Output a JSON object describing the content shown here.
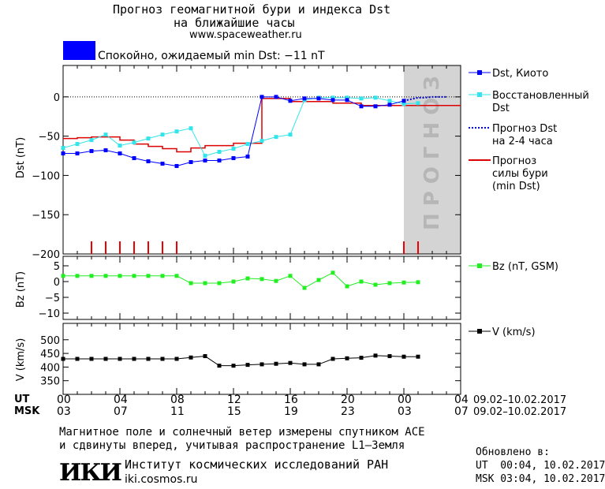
{
  "header": {
    "title_line1": "Прогноз геомагнитной бури и индекса Dst",
    "title_line2": "на ближайшие часы",
    "site": "www.spaceweather.ru",
    "status_text": "Спокойно, ожидаемый min Dst: −11 nT",
    "status_color": "#0000ff"
  },
  "forecast_label": "ПРОГНОЗ",
  "colors": {
    "dst_kyoto": "#0000ff",
    "dst_restored": "#33e5ea",
    "dst_forecast": "#0000cc",
    "storm_forecast": "#dd0000",
    "bz": "#22ee22",
    "v": "#000000",
    "forecast_shade": "#d4d4d4",
    "ticks_red": "#ee0000"
  },
  "time_axis": {
    "ut_label": "UT",
    "msk_label": "MSK",
    "ut_ticks": [
      "00",
      "04",
      "08",
      "12",
      "16",
      "20",
      "00",
      "04"
    ],
    "msk_ticks": [
      "03",
      "07",
      "11",
      "15",
      "19",
      "23",
      "03",
      "07"
    ],
    "date_range_ut": "09.02–10.02.2017",
    "date_range_msk": "09.02–10.02.2017"
  },
  "chart_data": [
    {
      "type": "line",
      "ylabel": "Dst (nT)",
      "ylim": [
        -200,
        40
      ],
      "yticks": [
        0,
        -50,
        -100,
        -150,
        -200
      ],
      "xlim": [
        0,
        28
      ],
      "forecast_region_start": 24,
      "legend": [
        {
          "name": "Dst, Киото"
        },
        {
          "name": "Восстановленный Dst"
        },
        {
          "name": "Прогноз Dst на 2-4 часа"
        },
        {
          "name": "Прогноз силы бури (min Dst)"
        }
      ],
      "series": [
        {
          "name": "Dst, Киото",
          "x": [
            0,
            1,
            2,
            3,
            4,
            5,
            6,
            7,
            8,
            9,
            10,
            11,
            12,
            13,
            14,
            15,
            16,
            17,
            18,
            19,
            20,
            21,
            22,
            23,
            24
          ],
          "values": [
            -72,
            -72,
            -69,
            -68,
            -72,
            -78,
            -82,
            -85,
            -88,
            -83,
            -81,
            -81,
            -78,
            -76,
            0,
            0,
            -5,
            -2,
            -2,
            -4,
            -4,
            -12,
            -12,
            -10,
            -5
          ]
        },
        {
          "name": "Восстановленный Dst",
          "x": [
            0,
            1,
            2,
            3,
            4,
            5,
            6,
            7,
            8,
            9,
            10,
            11,
            12,
            13,
            14,
            15,
            16,
            17,
            18,
            19,
            20,
            21,
            22,
            23,
            24,
            25
          ],
          "values": [
            -65,
            -60,
            -55,
            -48,
            -62,
            -58,
            -53,
            -48,
            -44,
            -40,
            -75,
            -70,
            -66,
            -60,
            -56,
            -51,
            -48,
            -4,
            -1,
            -1,
            -1,
            -2,
            -1,
            -5,
            -9,
            -8
          ]
        },
        {
          "name": "Прогноз Dst",
          "x": [
            24,
            24.5,
            25,
            25.5,
            26,
            26.5,
            27
          ],
          "values": [
            -5,
            -3,
            -1,
            -1,
            0,
            0,
            0
          ]
        },
        {
          "name": "Прогноз силы бури (min Dst)",
          "x": [
            0,
            1,
            2,
            3,
            4,
            5,
            6,
            7,
            8,
            9,
            10,
            11,
            12,
            13,
            14,
            15,
            16,
            17,
            18,
            19,
            20,
            21,
            22,
            23,
            24,
            25,
            26,
            27,
            28
          ],
          "values": [
            -53,
            -52,
            -51,
            -51,
            -55,
            -60,
            -63,
            -66,
            -70,
            -65,
            -62,
            -62,
            -59,
            -59,
            -2,
            -2,
            -6,
            -6,
            -6,
            -8,
            -8,
            -11,
            -11,
            -11,
            -11,
            -11,
            -11,
            -11,
            -11
          ]
        }
      ],
      "storm_markers_x": [
        2,
        3,
        4,
        5,
        6,
        7,
        8,
        24,
        25
      ]
    },
    {
      "type": "line",
      "ylabel": "Bz (nT)",
      "ylim": [
        -12,
        8
      ],
      "yticks": [
        5,
        0,
        -5,
        -10
      ],
      "series": [
        {
          "name": "Bz (nT, GSM)",
          "x": [
            0,
            1,
            2,
            3,
            4,
            5,
            6,
            7,
            8,
            9,
            10,
            11,
            12,
            13,
            14,
            15,
            16,
            17,
            18,
            19,
            20,
            21,
            22,
            23,
            24,
            25
          ],
          "values": [
            1.8,
            1.8,
            1.8,
            1.8,
            1.8,
            1.8,
            1.8,
            1.8,
            1.8,
            -0.5,
            -0.5,
            -0.5,
            0,
            1,
            0.8,
            0.2,
            1.8,
            -2,
            0.5,
            2.8,
            -1.5,
            0,
            -1,
            -0.5,
            -0.3,
            -0.2
          ]
        }
      ]
    },
    {
      "type": "line",
      "ylabel": "V (km/s)",
      "ylim": [
        300,
        560
      ],
      "yticks": [
        500,
        450,
        400,
        350
      ],
      "series": [
        {
          "name": "V (km/s)",
          "x": [
            0,
            1,
            2,
            3,
            4,
            5,
            6,
            7,
            8,
            9,
            10,
            11,
            12,
            13,
            14,
            15,
            16,
            17,
            18,
            19,
            20,
            21,
            22,
            23,
            24,
            25
          ],
          "values": [
            430,
            430,
            430,
            430,
            430,
            430,
            430,
            430,
            430,
            435,
            440,
            405,
            405,
            408,
            410,
            412,
            415,
            410,
            410,
            430,
            432,
            434,
            442,
            440,
            438,
            438
          ]
        }
      ]
    }
  ],
  "footer": {
    "note_line1": "Магнитное поле и солнечный ветер измерены спутником ACE",
    "note_line2": "и сдвинуты вперед, учитывая распространение L1–Земля",
    "logo_text": "ИКИ",
    "institute": "Институт космических исследований РАН",
    "institute_site": "iki.cosmos.ru",
    "updated_label": "Обновлено в:",
    "updated_ut": "UT  00:04, 10.02.2017",
    "updated_msk": "MSK 03:04, 10.02.2017"
  }
}
